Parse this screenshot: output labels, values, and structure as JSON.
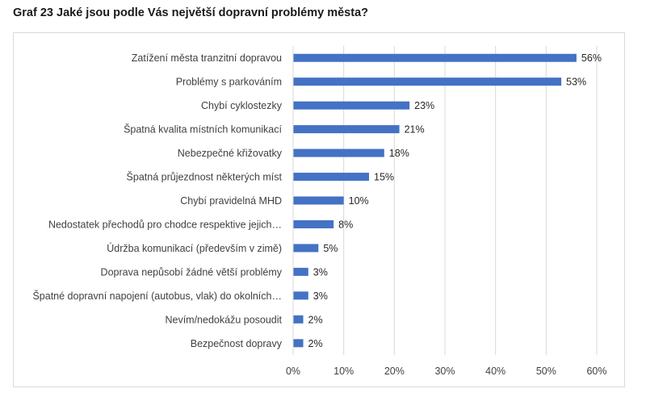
{
  "page_title": "Graf 23 Jaké jsou podle Vás největší dopravní problémy města?",
  "colors": {
    "bar": "#4472c4",
    "grid": "#d9d9d9",
    "border": "#d9d9d9"
  },
  "chart_data": {
    "type": "bar",
    "orientation": "horizontal",
    "title": "",
    "xlabel": "",
    "ylabel": "",
    "xlim": [
      0,
      60
    ],
    "x_ticks": [
      "0%",
      "10%",
      "20%",
      "30%",
      "40%",
      "50%",
      "60%"
    ],
    "grid": true,
    "legend": "none",
    "categories": [
      "Zatížení města tranzitní dopravou",
      "Problémy s parkováním",
      "Chybí cyklostezky",
      "Špatná kvalita místních komunikací",
      "Nebezpečné křižovatky",
      "Špatná průjezdnost některých míst",
      "Chybí pravidelná MHD",
      "Nedostatek přechodů pro chodce respektive jejich…",
      "Údržba komunikací (především v zimě)",
      "Doprava nepůsobí žádné větší problémy",
      "Špatné dopravní napojení (autobus, vlak) do okolních…",
      "Nevím/nedokážu posoudit",
      "Bezpečnost dopravy"
    ],
    "values": [
      56,
      53,
      23,
      21,
      18,
      15,
      10,
      8,
      5,
      3,
      3,
      2,
      2
    ],
    "data_labels": [
      "56%",
      "53%",
      "23%",
      "21%",
      "18%",
      "15%",
      "10%",
      "8%",
      "5%",
      "3%",
      "3%",
      "2%",
      "2%"
    ]
  }
}
